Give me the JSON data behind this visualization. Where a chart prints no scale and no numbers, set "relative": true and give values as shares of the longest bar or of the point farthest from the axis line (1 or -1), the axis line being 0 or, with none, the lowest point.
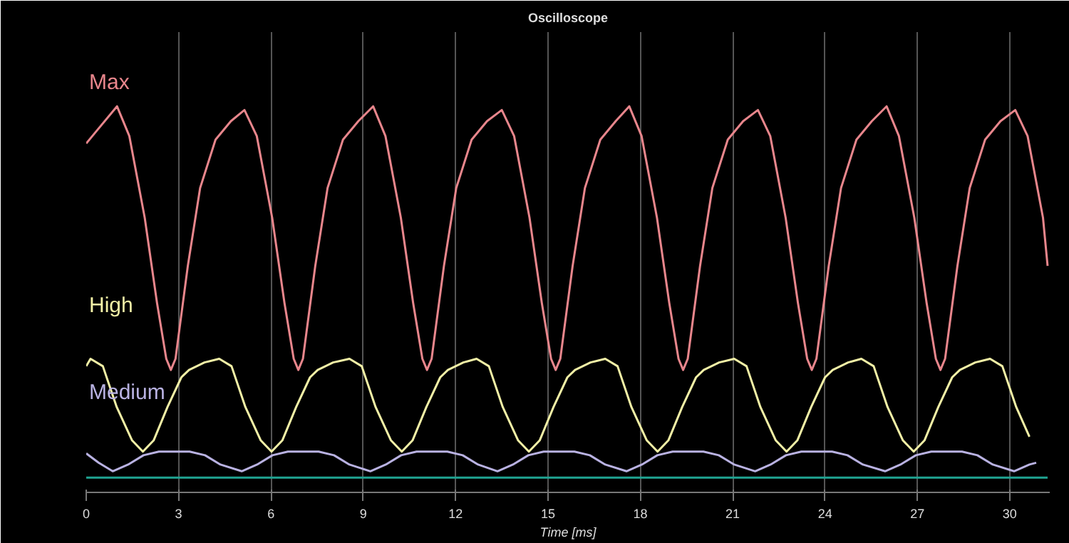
{
  "chart_data": {
    "type": "line",
    "title": "Oscilloscope",
    "xlabel": "Time [ms]",
    "relative": true,
    "xlim": [
      0,
      31.3
    ],
    "xticks": [
      0,
      3,
      6,
      9,
      12,
      15,
      18,
      21,
      24,
      27,
      30
    ],
    "grid": "x",
    "line_style": "solid",
    "marker": "none",
    "series": [
      {
        "name": "Max",
        "color": "#e8868c",
        "x": [
          0,
          0.3,
          1.0,
          1.4,
          1.9,
          2.3,
          2.6,
          2.75,
          2.9,
          3.3,
          3.7,
          4.2,
          4.7,
          5.14,
          5.54,
          6.04,
          6.44,
          6.74,
          6.89,
          7.04,
          7.44,
          7.84,
          8.34,
          8.84,
          9.32,
          9.72,
          10.22,
          10.62,
          10.92,
          11.07,
          11.22,
          11.62,
          12.02,
          12.52,
          13.02,
          13.5,
          13.9,
          14.4,
          14.8,
          15.1,
          15.25,
          15.4,
          15.8,
          16.2,
          16.7,
          17.2,
          17.64,
          18.04,
          18.54,
          18.94,
          19.24,
          19.39,
          19.54,
          19.94,
          20.34,
          20.84,
          21.34,
          21.82,
          22.22,
          22.72,
          23.12,
          23.42,
          23.57,
          23.72,
          24.12,
          24.52,
          25.02,
          25.52,
          26.0,
          26.4,
          26.9,
          27.3,
          27.6,
          27.75,
          27.9,
          28.3,
          28.7,
          29.2,
          29.7,
          30.18,
          30.58,
          31.08,
          31.23
        ],
        "values": [
          0.9,
          0.93,
          1.0,
          0.92,
          0.7,
          0.47,
          0.32,
          0.29,
          0.32,
          0.57,
          0.78,
          0.91,
          0.96,
          0.99,
          0.92,
          0.7,
          0.47,
          0.32,
          0.29,
          0.32,
          0.57,
          0.78,
          0.91,
          0.96,
          1.0,
          0.92,
          0.7,
          0.47,
          0.32,
          0.29,
          0.32,
          0.57,
          0.78,
          0.91,
          0.96,
          0.99,
          0.92,
          0.7,
          0.47,
          0.32,
          0.29,
          0.32,
          0.57,
          0.78,
          0.91,
          0.96,
          1.0,
          0.92,
          0.7,
          0.47,
          0.32,
          0.29,
          0.32,
          0.57,
          0.78,
          0.91,
          0.96,
          0.99,
          0.92,
          0.7,
          0.47,
          0.32,
          0.29,
          0.32,
          0.57,
          0.78,
          0.91,
          0.96,
          1.0,
          0.92,
          0.7,
          0.47,
          0.32,
          0.29,
          0.32,
          0.57,
          0.78,
          0.91,
          0.96,
          0.99,
          0.92,
          0.7,
          0.57
        ]
      },
      {
        "name": "High",
        "color": "#f2f0a6",
        "x": [
          0,
          0.14,
          0.54,
          0.99,
          1.49,
          1.84,
          2.19,
          2.64,
          3.09,
          3.34,
          3.84,
          4.32,
          4.72,
          5.17,
          5.67,
          6.02,
          6.37,
          6.82,
          7.27,
          7.52,
          8.02,
          8.55,
          8.95,
          9.4,
          9.9,
          10.25,
          10.6,
          11.05,
          11.5,
          11.75,
          12.25,
          12.68,
          13.08,
          13.53,
          14.03,
          14.38,
          14.73,
          15.18,
          15.63,
          15.88,
          16.38,
          16.86,
          17.26,
          17.71,
          18.21,
          18.56,
          18.91,
          19.36,
          19.81,
          20.06,
          20.56,
          21.05,
          21.45,
          21.9,
          22.4,
          22.75,
          23.1,
          23.55,
          24.0,
          24.25,
          24.75,
          25.18,
          25.58,
          26.03,
          26.53,
          26.88,
          27.23,
          27.68,
          28.13,
          28.38,
          28.88,
          29.36,
          29.76,
          30.21,
          30.64
        ],
        "values": [
          0.3,
          0.32,
          0.3,
          0.19,
          0.1,
          0.07,
          0.1,
          0.19,
          0.27,
          0.29,
          0.31,
          0.32,
          0.3,
          0.19,
          0.1,
          0.07,
          0.1,
          0.19,
          0.27,
          0.29,
          0.31,
          0.32,
          0.3,
          0.19,
          0.1,
          0.07,
          0.1,
          0.19,
          0.27,
          0.29,
          0.31,
          0.32,
          0.3,
          0.19,
          0.1,
          0.07,
          0.1,
          0.19,
          0.27,
          0.29,
          0.31,
          0.32,
          0.3,
          0.19,
          0.1,
          0.07,
          0.1,
          0.19,
          0.27,
          0.29,
          0.31,
          0.32,
          0.3,
          0.19,
          0.1,
          0.07,
          0.1,
          0.19,
          0.27,
          0.29,
          0.31,
          0.32,
          0.3,
          0.19,
          0.1,
          0.07,
          0.1,
          0.19,
          0.27,
          0.29,
          0.31,
          0.32,
          0.3,
          0.19,
          0.11
        ]
      },
      {
        "name": "Medium",
        "color": "#b9b2e2",
        "x": [
          0,
          0.4,
          0.86,
          1.36,
          1.86,
          2.36,
          3.36,
          3.86,
          4.36,
          5.05,
          5.55,
          6.05,
          6.55,
          7.55,
          8.05,
          8.55,
          9.23,
          9.73,
          10.23,
          10.73,
          11.73,
          12.23,
          12.73,
          13.36,
          13.86,
          14.36,
          14.86,
          15.86,
          16.36,
          16.86,
          17.55,
          18.05,
          18.55,
          19.05,
          20.05,
          20.55,
          21.05,
          21.73,
          22.23,
          22.73,
          23.23,
          24.23,
          24.73,
          25.23,
          25.95,
          26.45,
          26.95,
          27.45,
          28.45,
          28.95,
          29.45,
          30.14,
          30.64,
          30.86
        ],
        "values": [
          0.065,
          0.04,
          0.017,
          0.035,
          0.06,
          0.07,
          0.07,
          0.06,
          0.035,
          0.017,
          0.035,
          0.06,
          0.07,
          0.07,
          0.06,
          0.035,
          0.017,
          0.035,
          0.06,
          0.07,
          0.07,
          0.06,
          0.035,
          0.017,
          0.035,
          0.06,
          0.07,
          0.07,
          0.06,
          0.035,
          0.017,
          0.035,
          0.06,
          0.07,
          0.07,
          0.06,
          0.035,
          0.017,
          0.035,
          0.06,
          0.07,
          0.07,
          0.06,
          0.035,
          0.017,
          0.035,
          0.06,
          0.07,
          0.07,
          0.06,
          0.035,
          0.017,
          0.035,
          0.04
        ]
      },
      {
        "color": "#1fa392",
        "x": [
          0,
          31.23
        ],
        "values": [
          0,
          0
        ]
      }
    ]
  }
}
